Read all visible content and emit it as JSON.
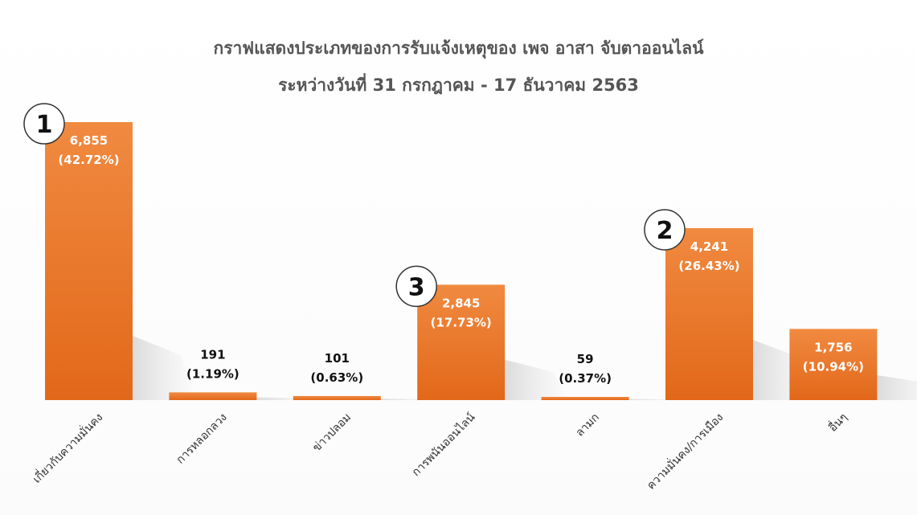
{
  "chart_data": {
    "type": "bar",
    "title": "กราฟแสดงประเภทของการรับแจ้งเหตุของ เพจ อาสา จับตาออนไลน์",
    "subtitle": "ระหว่างวันที่ 31 กรกฎาคม - 17 ธันวาคม 2563",
    "xlabel": "",
    "ylabel": "",
    "ylim": [
      0,
      7000
    ],
    "grid": false,
    "categories": [
      "เกี่ยวกับความมั่นคง",
      "การหลอกลวง",
      "ข่าวปลอม",
      "การพนันออนไลน์",
      "ลามก",
      "ความมั่นคง/การเมือง",
      "อื่นๆ"
    ],
    "values": [
      6855,
      191,
      101,
      2845,
      59,
      4241,
      1756
    ],
    "value_labels": [
      "6,855",
      "191",
      "101",
      "2,845",
      "59",
      "4,241",
      "1,756"
    ],
    "percent_labels": [
      "(42.72%)",
      "(1.19%)",
      "(0.63%)",
      "(17.73%)",
      "(0.37%)",
      "(26.43%)",
      "(10.94%)"
    ],
    "rank_annotations": [
      {
        "category_index": 0,
        "label": "1"
      },
      {
        "category_index": 5,
        "label": "2"
      },
      {
        "category_index": 3,
        "label": "3"
      }
    ],
    "bar_color": "#ED7D31",
    "bar_color_dark": "#E06A1B"
  }
}
